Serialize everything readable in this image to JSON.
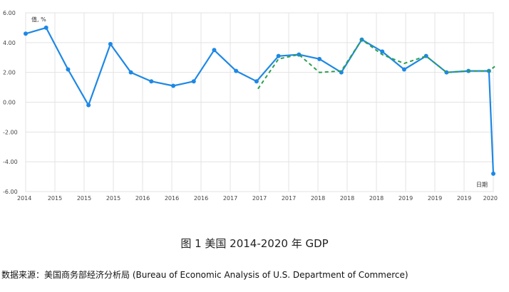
{
  "caption": "图 1 美国 2014-2020 年 GDP",
  "source": "数据来源：美国商务部经济分析局 (Bureau of Economic Analysis of U.S. Department of Commerce)",
  "chart_data": {
    "type": "line",
    "y_unit_label": "值, %",
    "x_axis_corner_label": "日期",
    "ylim": [
      -6,
      6
    ],
    "y_ticks": [
      "6.00",
      "4.00",
      "2.00",
      "0.00",
      "-2.00",
      "-4.00",
      "-6.00"
    ],
    "y_tick_values": [
      6,
      4,
      2,
      0,
      -2,
      -4,
      -6
    ],
    "x_tick_labels": [
      "2014",
      "2015",
      "2015",
      "2015",
      "2016",
      "2016",
      "2016",
      "2017",
      "2017",
      "2017",
      "2018",
      "2018",
      "2018",
      "2019",
      "2019",
      "2019",
      "2020"
    ],
    "grid": true,
    "series": [
      {
        "style": "solid",
        "color": "#1e88e5",
        "markers": true,
        "x": [
          0,
          0.7,
          1.45,
          2.15,
          2.9,
          3.6,
          4.3,
          5.05,
          5.75,
          6.45,
          7.2,
          7.9,
          8.65,
          9.35,
          10.05,
          10.8,
          11.5,
          12.2,
          12.95,
          13.7,
          14.4,
          15.15,
          15.85,
          16.0
        ],
        "y": [
          4.6,
          5.0,
          2.2,
          -0.2,
          3.9,
          2.0,
          1.4,
          1.1,
          1.4,
          3.5,
          2.1,
          1.4,
          3.1,
          3.2,
          2.9,
          2.0,
          4.2,
          3.4,
          2.2,
          3.1,
          2.0,
          2.1,
          2.1,
          -4.8
        ]
      },
      {
        "style": "dashed",
        "color": "#2e9e4f",
        "markers": false,
        "x": [
          7.95,
          8.65,
          9.35,
          10.05,
          10.8,
          11.5,
          12.2,
          12.95,
          13.7,
          14.4,
          15.15,
          15.85,
          16.05
        ],
        "y": [
          0.9,
          2.9,
          3.2,
          2.0,
          2.1,
          4.2,
          3.2,
          2.6,
          3.1,
          2.0,
          2.1,
          2.1,
          2.4
        ]
      }
    ]
  }
}
